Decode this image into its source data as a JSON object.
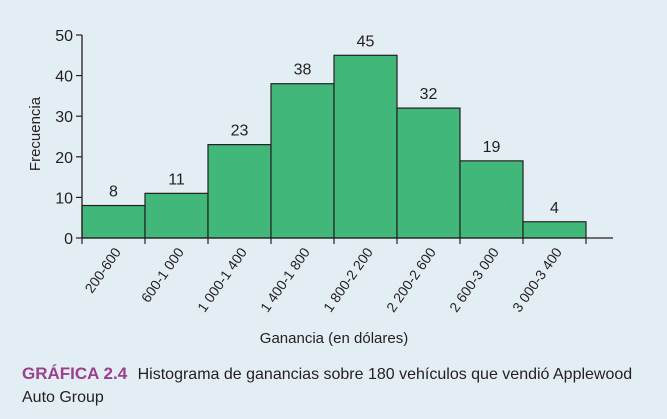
{
  "chart_data": {
    "type": "bar",
    "categories": [
      "200-600",
      "600-1 000",
      "1 000-1 400",
      "1 400-1 800",
      "1 800-2 200",
      "2 200-2 600",
      "2 600-3 000",
      "3 000-3 400"
    ],
    "values": [
      8,
      11,
      23,
      38,
      45,
      32,
      19,
      4
    ],
    "xlabel": "Ganancia (en dólares)",
    "ylabel": "Frecuencia",
    "ylim": [
      0,
      50
    ],
    "yticks": [
      0,
      10,
      20,
      30,
      40,
      50
    ],
    "grid": false,
    "bar_color": "#41b87a",
    "bar_edge_color": "#231f20"
  },
  "caption": {
    "label": "GRÁFICA 2.4",
    "text": "Histograma de ganancias sobre 180 vehículos que vendió Applewood Auto Group"
  },
  "colors": {
    "background": "#e3eef4",
    "caption_label": "#9b3f8e"
  }
}
